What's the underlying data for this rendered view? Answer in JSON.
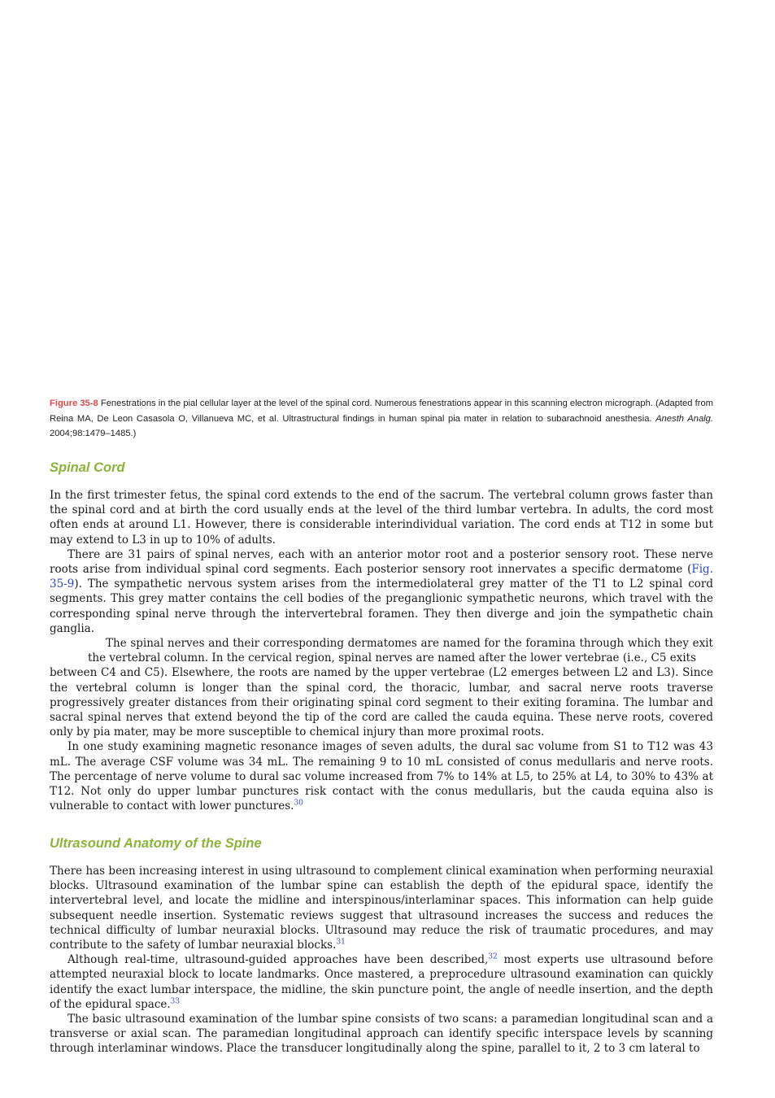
{
  "figure_caption": {
    "label": "Figure 35-8",
    "text_main": " Fenestrations in the pial cellular layer at the level of the spinal cord. Numerous fenestrations appear in this scanning electron micrograph. (Adapted from Reina MA, De Leon Casasola O, Villanueva MC, et al. Ultrastructural findings in human spinal pia mater in relation to subarachnoid anesthesia. ",
    "journal": "Anesth Analg.",
    "text_end": " 2004;98:1479–1485.)"
  },
  "section1": {
    "heading": "Spinal Cord",
    "p1": "In the first trimester fetus, the spinal cord extends to the end of the sacrum. The vertebral column grows faster than the spinal cord and at birth the cord usually ends at the level of the third lumbar vertebra. In adults, the cord most often ends at around L1. However, there is considerable interindividual variation. The cord ends at T12 in some but may extend to L3 in up to 10% of adults.",
    "p2_a": "There are 31 pairs of spinal nerves, each with an anterior motor root and a posterior sensory root. These nerve roots arise from individual spinal cord segments. Each posterior sensory root innervates a specific dermatome (",
    "p2_link": "Fig. 35-9",
    "p2_b": "). The sympathetic nervous system arises from the intermediolateral grey matter of the T1 to L2 spinal cord segments. This grey matter contains the cell bodies of the preganglionic sympathetic neurons, which travel with the corresponding spinal nerve through the intervertebral foramen. They then diverge and join the sympathetic chain ganglia.",
    "p3_first": "The spinal nerves and their corresponding dermatomes are named for the foramina through which they exit the vertebral column. In the cervical region, spinal nerves are named after the lower vertebrae (i.e., C5 exits",
    "p3_rest": "between C4 and C5). Elsewhere, the roots are named by the upper vertebrae (L2 emerges between L2 and L3). Since the vertebral column is longer than the spinal cord, the thoracic, lumbar, and sacral nerve roots traverse progressively greater distances from their originating spinal cord segment to their exiting foramina. The lumbar and sacral spinal nerves that extend beyond the tip of the cord are called the cauda equina. These nerve roots, covered only by pia mater, may be more susceptible to chemical injury than more proximal roots.",
    "p4": "In one study examining magnetic resonance images of seven adults, the dural sac volume from S1 to T12 was 43 mL. The average CSF volume was 34 mL. The remaining 9 to 10 mL consisted of conus medullaris and nerve roots. The percentage of nerve volume to dural sac volume increased from 7% to 14% at L5, to 25% at L4, to 30% to 43% at T12. Not only do upper lumbar punctures risk contact with the conus medullaris, but the cauda equina also is vulnerable to contact with lower punctures.",
    "p4_ref": "30"
  },
  "section2": {
    "heading": "Ultrasound Anatomy of the Spine",
    "p1": "There has been increasing interest in using ultrasound to complement clinical examination when performing neuraxial blocks. Ultrasound examination of the lumbar spine can establish the depth of the epidural space, identify the intervertebral level, and locate the midline and interspinous/interlaminar spaces. This information can help guide subsequent needle insertion. Systematic reviews suggest that ultrasound increases the success and reduces the technical difficulty of lumbar neuraxial blocks. Ultrasound may reduce the risk of traumatic procedures, and may contribute to the safety of lumbar neuraxial blocks.",
    "p1_ref": "31",
    "p2_a": "Although real-time, ultrasound-guided approaches have been described,",
    "p2_ref1": "32",
    "p2_b": " most experts use ultrasound before attempted neuraxial block to locate landmarks. Once mastered, a preprocedure ultrasound examination can quickly identify the exact lumbar interspace, the midline, the skin puncture point, the angle of needle insertion, and the depth of the epidural space.",
    "p2_ref2": "33",
    "p3": "The basic ultrasound examination of the lumbar spine consists of two scans: a paramedian longitudinal scan and a transverse or axial scan. The paramedian longitudinal approach can identify specific interspace levels by scanning through interlaminar windows. Place the transducer longitudinally along the spine, parallel to it, 2 to 3 cm lateral to"
  }
}
